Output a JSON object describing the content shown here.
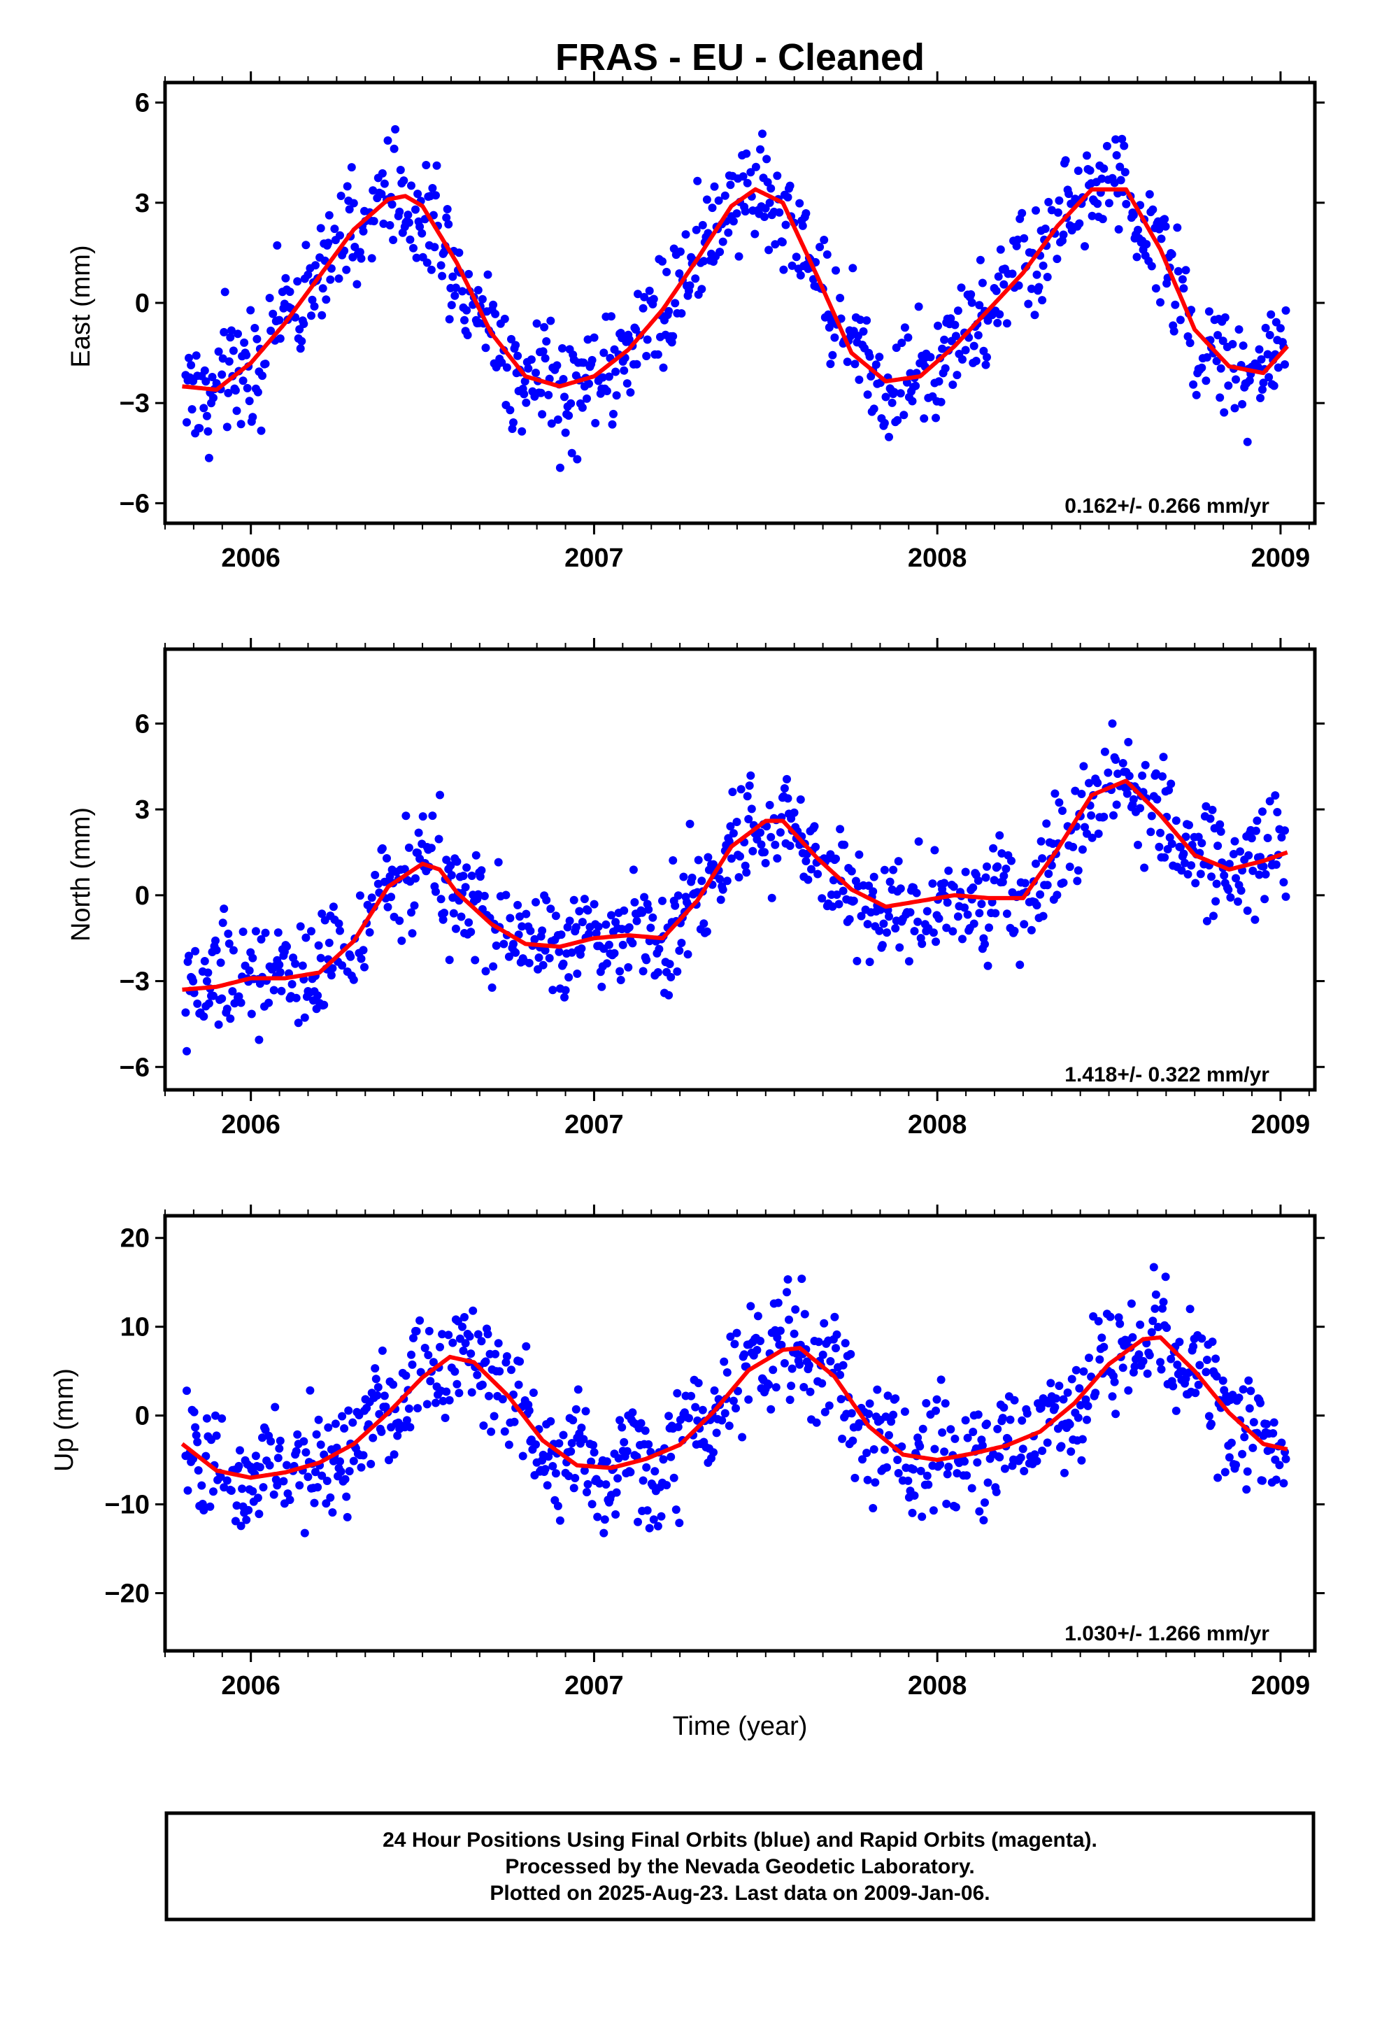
{
  "title": "FRAS  - EU - Cleaned",
  "xlabel": "Time (year)",
  "x_ticks": [
    "2006",
    "2007",
    "2008",
    "2009"
  ],
  "colors": {
    "points": "#0000ff",
    "fit": "#ff0000",
    "frame": "#000000"
  },
  "footer": {
    "line1": "24 Hour Positions Using Final Orbits (blue) and Rapid Orbits (magenta).",
    "line2": "Processed by the Nevada Geodetic Laboratory.",
    "line3": "Plotted on 2025-Aug-23. Last data on 2009-Jan-06."
  },
  "chart_data": [
    {
      "type": "scatter",
      "ylabel": "East (mm)",
      "rate": "0.162+/- 0.266 mm/yr",
      "xlim": [
        2005.75,
        2009.1
      ],
      "ylim": [
        -6.6,
        6.6
      ],
      "yticks": [
        -6,
        -3,
        0,
        3,
        6
      ],
      "ytick_labels": [
        "−6",
        "−3",
        "0",
        "3",
        "6"
      ],
      "scatter_spread": 0.85,
      "fit": {
        "name": "fit",
        "x": [
          2005.8,
          2005.9,
          2006.0,
          2006.1,
          2006.2,
          2006.3,
          2006.4,
          2006.45,
          2006.5,
          2006.6,
          2006.7,
          2006.8,
          2006.9,
          2007.0,
          2007.1,
          2007.2,
          2007.3,
          2007.4,
          2007.47,
          2007.55,
          2007.65,
          2007.75,
          2007.85,
          2007.95,
          2008.05,
          2008.15,
          2008.25,
          2008.35,
          2008.45,
          2008.55,
          2008.65,
          2008.75,
          2008.85,
          2008.95,
          2009.02
        ],
        "y": [
          -2.5,
          -2.6,
          -1.8,
          -0.6,
          0.8,
          2.2,
          3.1,
          3.2,
          2.9,
          1.2,
          -0.9,
          -2.2,
          -2.5,
          -2.2,
          -1.4,
          -0.2,
          1.3,
          2.9,
          3.4,
          3.0,
          0.8,
          -1.5,
          -2.35,
          -2.2,
          -1.3,
          -0.2,
          0.9,
          2.3,
          3.4,
          3.4,
          1.6,
          -0.8,
          -1.9,
          -2.1,
          -1.3
        ]
      }
    },
    {
      "type": "scatter",
      "ylabel": "North (mm)",
      "rate": "1.418+/- 0.322 mm/yr",
      "xlim": [
        2005.75,
        2009.1
      ],
      "ylim": [
        -6.8,
        8.6
      ],
      "yticks": [
        -6,
        -3,
        0,
        3,
        6
      ],
      "ytick_labels": [
        "−6",
        "−3",
        "0",
        "3",
        "6"
      ],
      "scatter_spread": 0.95,
      "fit": {
        "name": "fit",
        "x": [
          2005.8,
          2005.9,
          2006.0,
          2006.1,
          2006.2,
          2006.3,
          2006.4,
          2006.5,
          2006.55,
          2006.6,
          2006.7,
          2006.8,
          2006.9,
          2007.0,
          2007.1,
          2007.2,
          2007.3,
          2007.4,
          2007.5,
          2007.55,
          2007.65,
          2007.75,
          2007.85,
          2007.95,
          2008.05,
          2008.15,
          2008.25,
          2008.35,
          2008.45,
          2008.55,
          2008.65,
          2008.75,
          2008.85,
          2008.95,
          2009.02
        ],
        "y": [
          -3.3,
          -3.2,
          -2.9,
          -2.9,
          -2.7,
          -1.6,
          0.3,
          1.1,
          0.9,
          0.1,
          -1.0,
          -1.7,
          -1.8,
          -1.5,
          -1.4,
          -1.5,
          -0.2,
          1.7,
          2.6,
          2.6,
          1.3,
          0.2,
          -0.4,
          -0.2,
          0.0,
          -0.1,
          -0.1,
          1.6,
          3.5,
          4.0,
          2.8,
          1.4,
          0.9,
          1.2,
          1.5
        ]
      }
    },
    {
      "type": "scatter",
      "ylabel": "Up (mm)",
      "rate": "1.030+/- 1.266 mm/yr",
      "xlim": [
        2005.75,
        2009.1
      ],
      "ylim": [
        -26.5,
        22.5
      ],
      "yticks": [
        -20,
        -10,
        0,
        10,
        20
      ],
      "ytick_labels": [
        "−20",
        "−10",
        "0",
        "10",
        "20"
      ],
      "scatter_spread": 3.3,
      "fit": {
        "name": "fit",
        "x": [
          2005.8,
          2005.9,
          2006.0,
          2006.1,
          2006.2,
          2006.3,
          2006.4,
          2006.5,
          2006.58,
          2006.65,
          2006.75,
          2006.85,
          2006.95,
          2007.05,
          2007.15,
          2007.25,
          2007.35,
          2007.45,
          2007.55,
          2007.6,
          2007.7,
          2007.8,
          2007.9,
          2008.0,
          2008.1,
          2008.2,
          2008.3,
          2008.4,
          2008.5,
          2008.6,
          2008.65,
          2008.75,
          2008.85,
          2008.95,
          2009.02
        ],
        "y": [
          -3.2,
          -6.2,
          -7.0,
          -6.4,
          -5.3,
          -3.2,
          0.3,
          4.3,
          6.6,
          6.0,
          2.2,
          -2.8,
          -5.6,
          -5.9,
          -4.9,
          -3.3,
          0.5,
          5.1,
          7.4,
          7.6,
          4.4,
          -1.2,
          -4.4,
          -5.0,
          -4.3,
          -3.4,
          -1.8,
          1.4,
          5.8,
          8.6,
          8.8,
          5.0,
          0.3,
          -3.2,
          -3.8
        ]
      }
    }
  ]
}
